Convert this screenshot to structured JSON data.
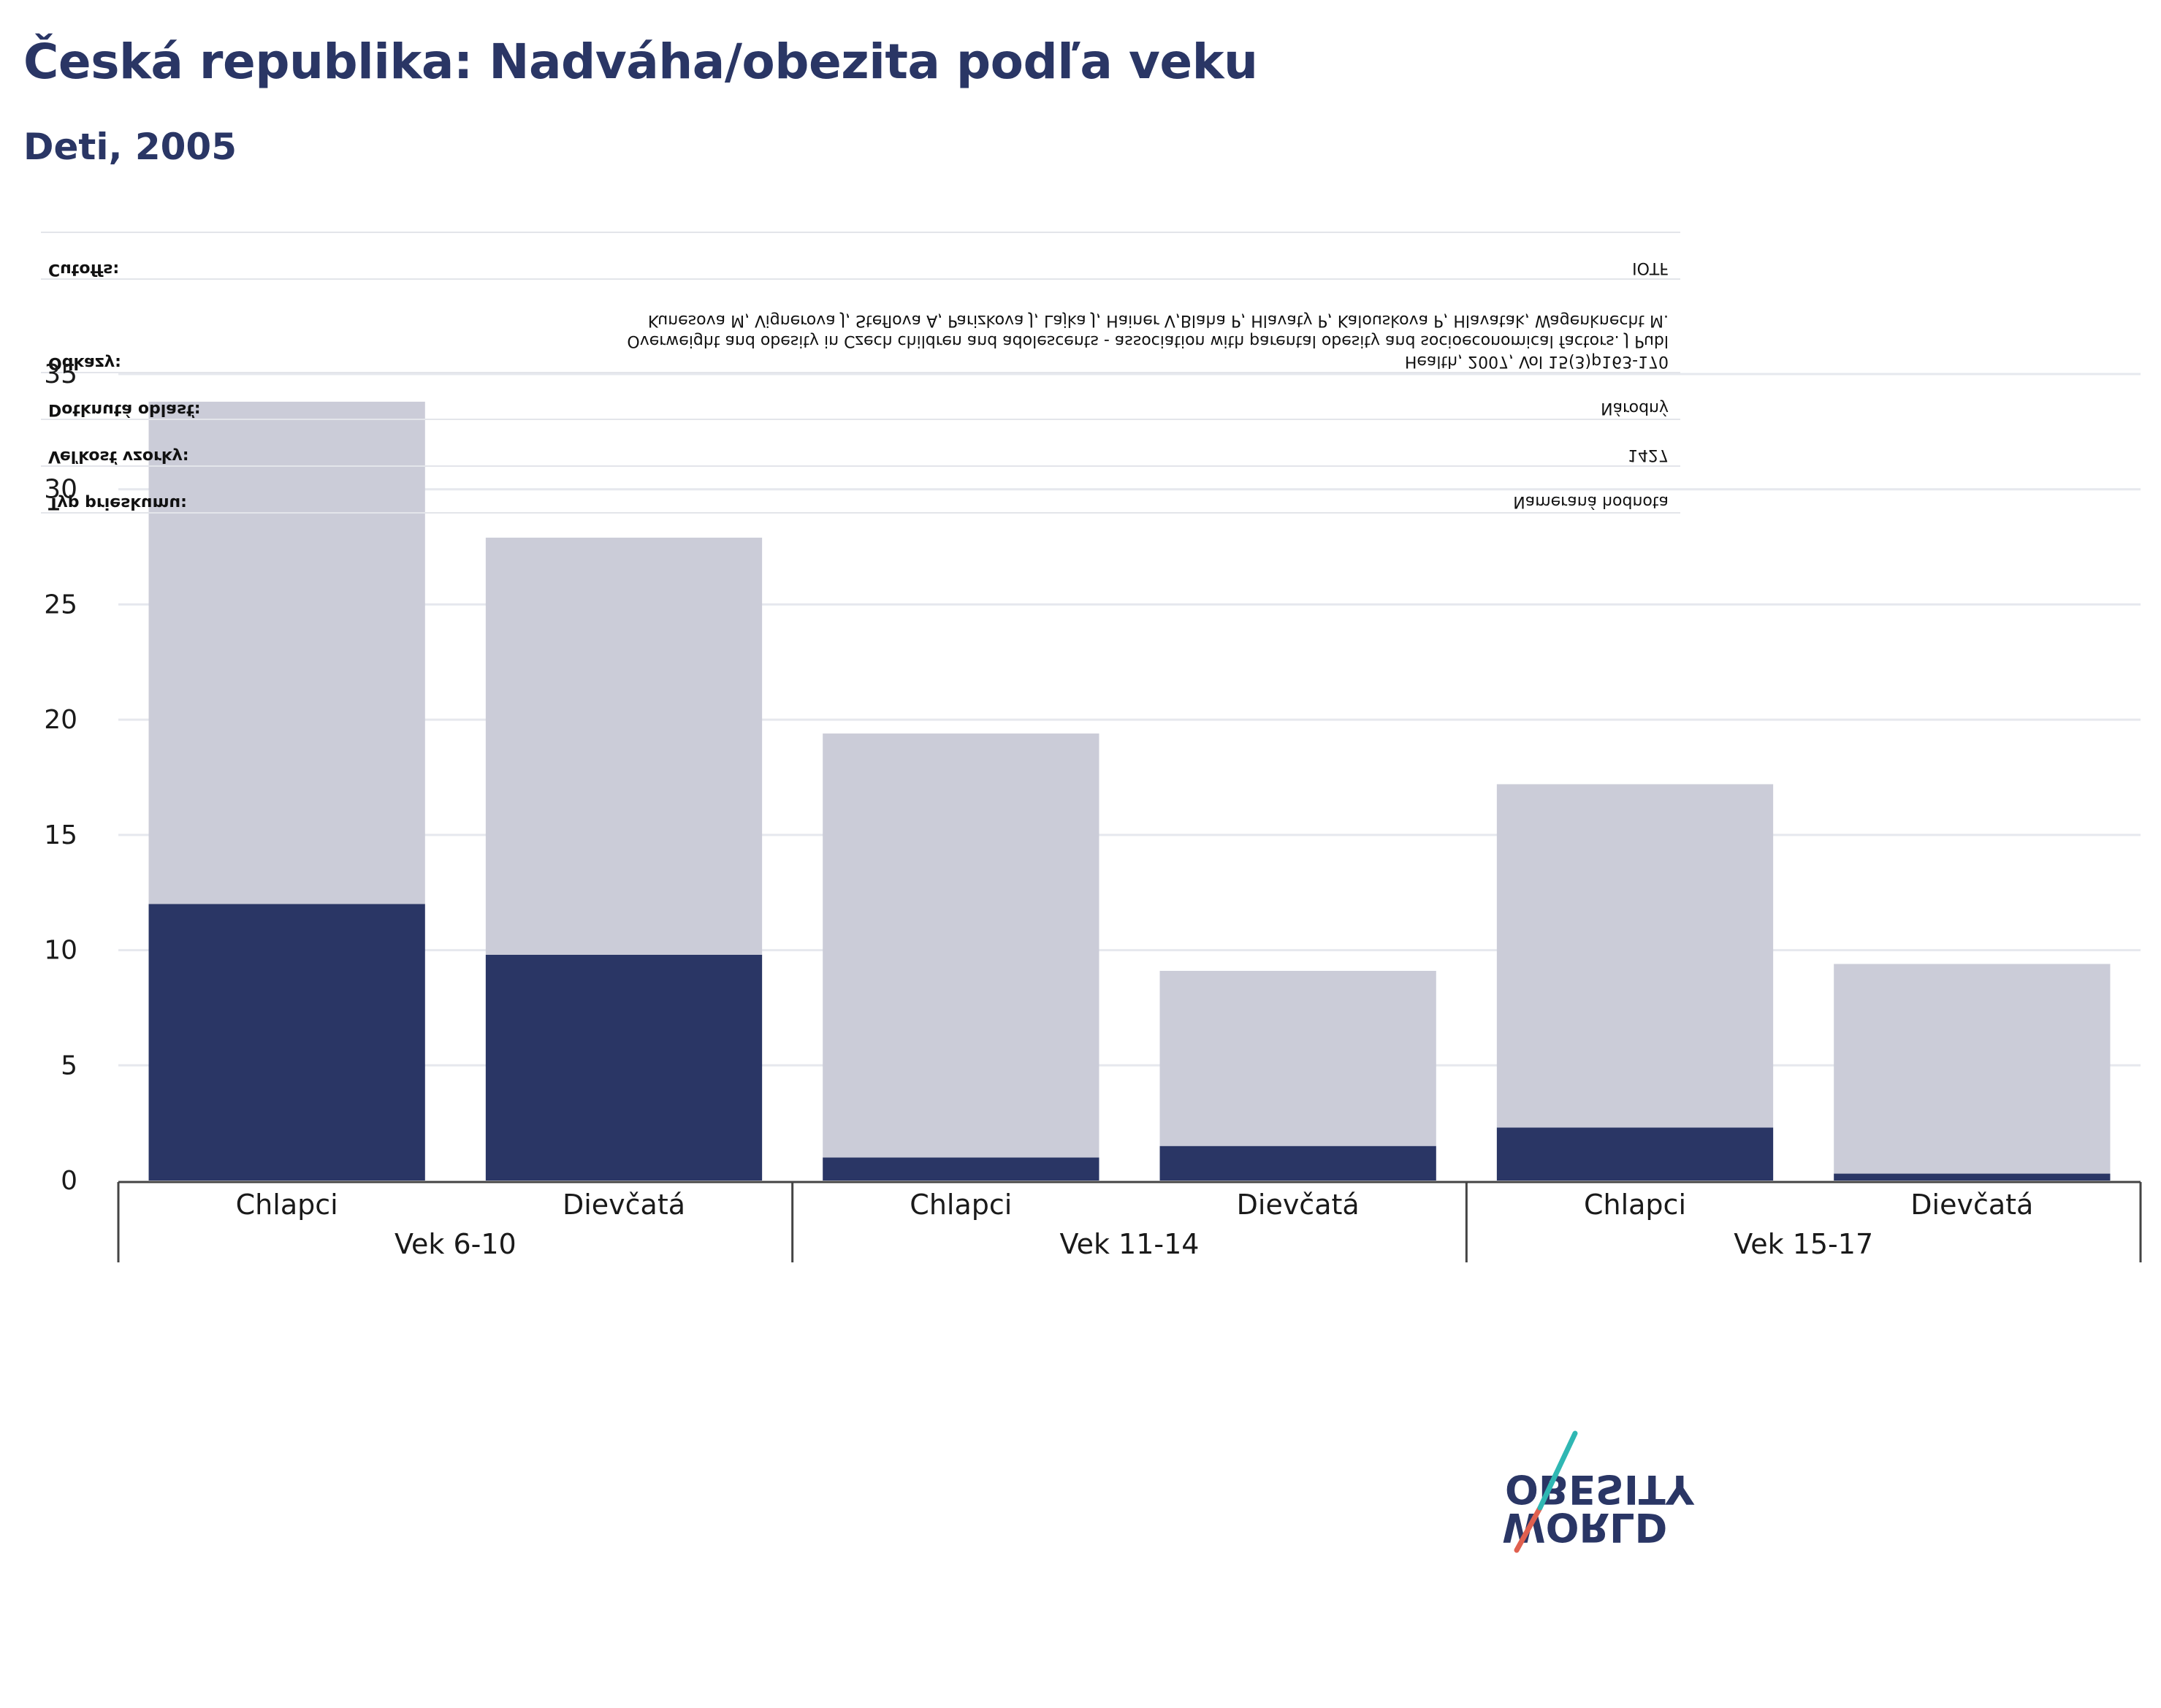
{
  "header": {
    "title": "Česká republika: Nadváha/obezita podľa veku",
    "subtitle": "Deti, 2005"
  },
  "colors": {
    "obesity": "#2a3665",
    "overweight": "#cbccd8",
    "title": "#2a3665",
    "grid": "#e6e8ee"
  },
  "mirrored_table": {
    "rows": [
      {
        "label": "Cutoffs:",
        "value": [
          "IOTF"
        ]
      },
      {
        "label": "Odkazy:",
        "value": [
          "Kunesova M, Vignerova J, Steflova A, Parizkova J, Lajka J, Hainer V,Blaha P, Hlavaty P, Kalouskova P, Hlavatak, Wagenknecht M.",
          "Overweight and obesity in Czech children and adolescents - association with parental obesity and socioeconomical factors. J Publ",
          "Health, 2007, Vol 15(3)p163-170"
        ]
      },
      {
        "label": "Dotknutá oblasť:",
        "value": [
          "Národný"
        ]
      },
      {
        "label": "Veľkosť vzorky:",
        "value": [
          "1427"
        ]
      },
      {
        "label": "Typ prieskumu:",
        "value": [
          "Nameraná hodnota"
        ]
      }
    ]
  },
  "chart_data": {
    "type": "bar",
    "stacked": true,
    "groups": [
      "Vek 6-10",
      "Vek 11-14",
      "Vek 15-17"
    ],
    "categories": [
      "Chlapci",
      "Dievčatá",
      "Chlapci",
      "Dievčatá",
      "Chlapci",
      "Dievčatá"
    ],
    "series": [
      {
        "values": [
          12.0,
          9.8,
          1.0,
          1.5,
          2.3,
          0.3
        ]
      },
      {
        "values": [
          21.8,
          18.1,
          18.4,
          7.6,
          14.9,
          9.1
        ]
      }
    ],
    "ylim": [
      0,
      35
    ],
    "yticks": [
      0,
      5,
      10,
      15,
      20,
      25,
      30,
      35
    ],
    "grid": true
  },
  "logo": {
    "line1": "OBESITY",
    "line2": "WORLD"
  }
}
